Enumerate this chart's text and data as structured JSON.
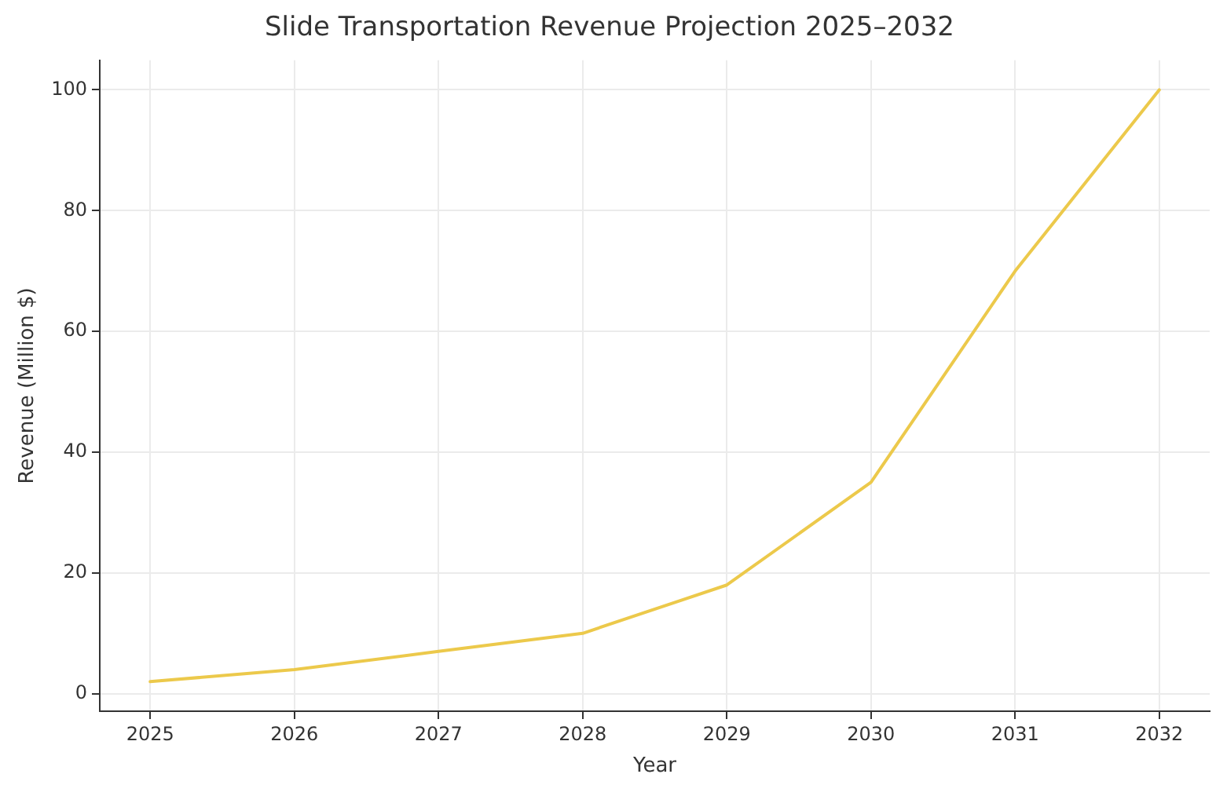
{
  "chart_data": {
    "type": "line",
    "title": "Slide Transportation Revenue Projection 2025–2032",
    "xlabel": "Year",
    "ylabel": "Revenue (Million $)",
    "x": [
      2025,
      2026,
      2027,
      2028,
      2029,
      2030,
      2031,
      2032
    ],
    "series": [
      {
        "color": "#ecc94b",
        "values": [
          2,
          4,
          7,
          10,
          18,
          35,
          70,
          100
        ]
      }
    ],
    "xlim": [
      2024.65,
      2032.35
    ],
    "xticks": [
      2025,
      2026,
      2027,
      2028,
      2029,
      2030,
      2031,
      2032
    ],
    "ylim": [
      -2.9,
      104.9
    ],
    "yticks": [
      0,
      20,
      40,
      60,
      80,
      100
    ],
    "grid": true,
    "legend": false,
    "marker": "none",
    "line_style": "solid"
  }
}
